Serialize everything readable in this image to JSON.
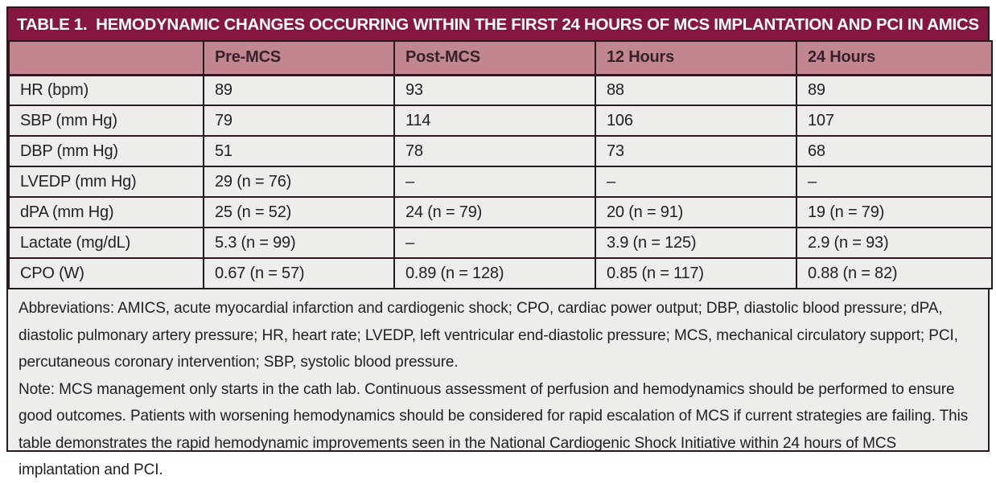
{
  "table": {
    "title": "TABLE 1.  HEMODYNAMIC CHANGES OCCURRING WITHIN THE FIRST 24 HOURS OF MCS IMPLANTATION AND PCI IN AMICS",
    "columns": [
      "",
      "Pre-MCS",
      "Post-MCS",
      "12 Hours",
      "24 Hours"
    ],
    "rows": [
      {
        "label": "HR (bpm)",
        "values": [
          "89",
          "93",
          "88",
          "89"
        ]
      },
      {
        "label": "SBP (mm Hg)",
        "values": [
          "79",
          "114",
          "106",
          "107"
        ]
      },
      {
        "label": "DBP (mm Hg)",
        "values": [
          "51",
          "78",
          "73",
          "68"
        ]
      },
      {
        "label": "LVEDP (mm Hg)",
        "values": [
          "29 (n = 76)",
          "–",
          "–",
          "–"
        ]
      },
      {
        "label": "dPA (mm Hg)",
        "values": [
          "25 (n = 52)",
          "24 (n = 79)",
          "20 (n = 91)",
          "19 (n = 79)"
        ]
      },
      {
        "label": "Lactate (mg/dL)",
        "values": [
          "5.3 (n = 99)",
          "–",
          "3.9 (n = 125)",
          "2.9 (n = 93)"
        ]
      },
      {
        "label": "CPO (W)",
        "values": [
          "0.67 (n = 57)",
          "0.89 (n = 128)",
          "0.85 (n = 117)",
          "0.88 (n = 82)"
        ]
      }
    ],
    "footnotes": {
      "abbreviations": "Abbreviations: AMICS, acute myocardial infarction and cardiogenic shock; CPO, cardiac power output; DBP, diastolic blood pressure; dPA, diastolic pulmonary artery pressure; HR, heart rate; LVEDP, left ventricular end-diastolic pressure; MCS, mechanical circulatory support; PCI, percutaneous coronary intervention; SBP, systolic blood pressure.",
      "note": "Note: MCS management only starts in the cath lab. Continuous assessment of perfusion and hemodynamics should be performed to ensure good outcomes. Patients with worsening hemodynamics should be considered for rapid escalation of MCS if current strategies are failing. This table demonstrates the rapid hemodynamic improvements seen in the National Cardiogenic Shock Initiative within 24 hours of MCS implantation and PCI."
    }
  },
  "colors": {
    "title_bg": "#851640",
    "header_bg": "#C28691",
    "body_bg": "#EDEDEB",
    "border": "#27191E",
    "title_text": "#FFFFFF",
    "body_text": "#231F20"
  }
}
